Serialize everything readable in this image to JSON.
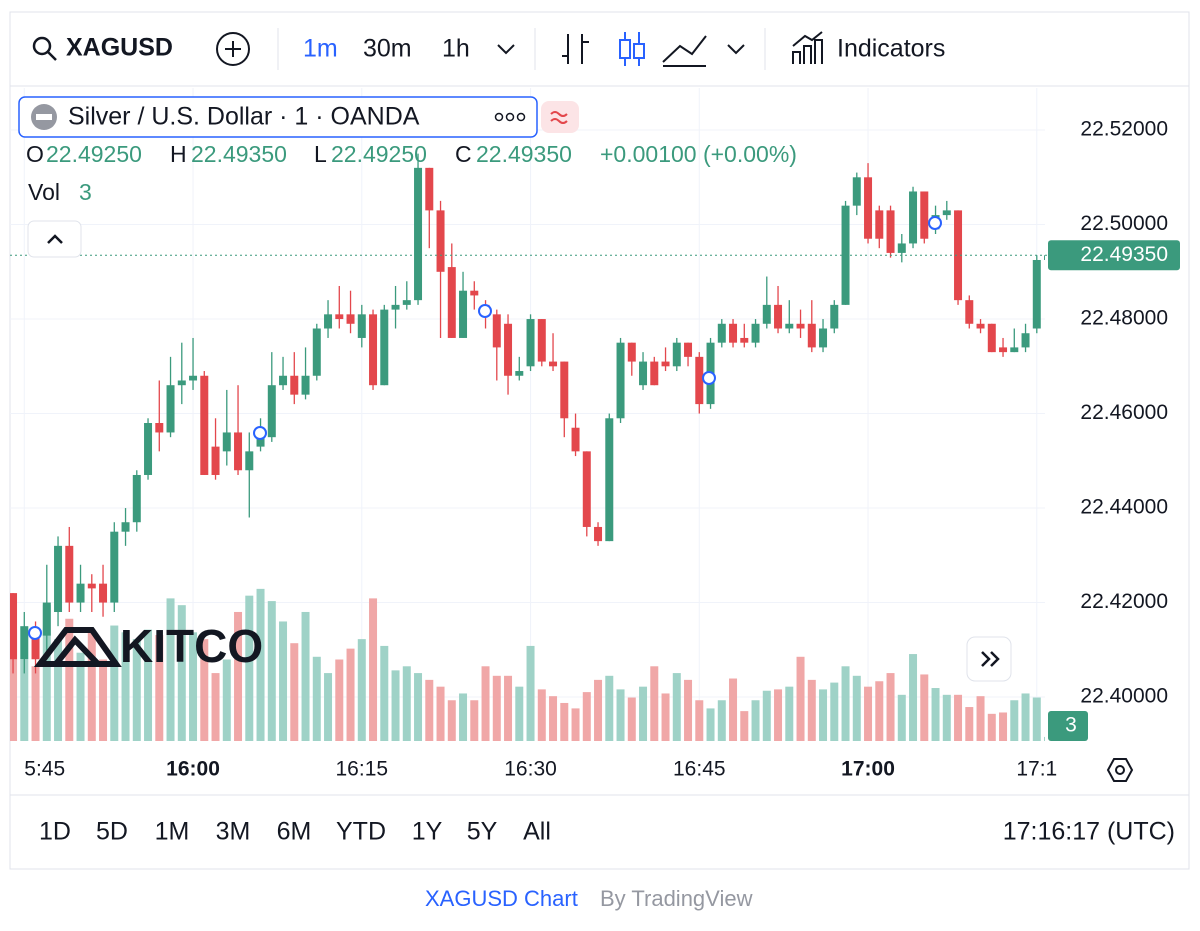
{
  "toolbar": {
    "symbol": "XAGUSD",
    "intervals": [
      "1m",
      "30m",
      "1h"
    ],
    "indicators": "Indicators"
  },
  "legend": {
    "title": "Silver / U.S. Dollar · 1 · OANDA",
    "o_label": "O",
    "o": "22.49250",
    "h_label": "H",
    "h": "22.49350",
    "l_label": "L",
    "l": "22.49250",
    "c_label": "C",
    "c": "22.49350",
    "change": "+0.00100 (+0.00%)",
    "vol_label": "Vol"
  },
  "watermark": "KITCO",
  "chart_data": {
    "type": "candlestick",
    "x": [
      -16,
      -15,
      -14,
      -13,
      -12,
      -11,
      -10,
      -9,
      -8,
      -7,
      -6,
      -5,
      -4,
      -3,
      -2,
      -1,
      0,
      1,
      2,
      3,
      4,
      5,
      6,
      7,
      8,
      9,
      10,
      11,
      12,
      13,
      14,
      15,
      16,
      17,
      18,
      19,
      20,
      21,
      22,
      23,
      24,
      25,
      26,
      27,
      28,
      29,
      30,
      31,
      32,
      33,
      34,
      35,
      36,
      37,
      38,
      39,
      40,
      41,
      42,
      43,
      44,
      45,
      46,
      47,
      48,
      49,
      50,
      51,
      52,
      53,
      54,
      55,
      56,
      57,
      58,
      59,
      60,
      61,
      62,
      63,
      64,
      65,
      66,
      67,
      68,
      69,
      70,
      71,
      72,
      73,
      74,
      75,
      76
    ],
    "open": [
      22.422,
      22.408,
      22.414,
      22.413,
      22.418,
      22.432,
      22.42,
      22.424,
      22.424,
      22.42,
      22.435,
      22.437,
      22.447,
      22.458,
      22.456,
      22.466,
      22.467,
      22.468,
      22.453,
      22.452,
      22.456,
      22.448,
      22.453,
      22.455,
      22.466,
      22.468,
      22.464,
      22.468,
      22.478,
      22.481,
      22.481,
      22.476,
      22.481,
      22.466,
      22.482,
      22.483,
      22.484,
      22.512,
      22.503,
      22.491,
      22.476,
      22.486,
      22.483,
      22.481,
      22.479,
      22.468,
      22.47,
      22.48,
      22.471,
      22.471,
      22.457,
      22.452,
      22.436,
      22.433,
      22.459,
      22.475,
      22.466,
      22.471,
      22.471,
      22.47,
      22.475,
      22.472,
      22.462,
      22.475,
      22.479,
      22.476,
      22.475,
      22.479,
      22.483,
      22.478,
      22.479,
      22.479,
      22.474,
      22.478,
      22.483,
      22.504,
      22.51,
      22.503,
      22.503,
      22.494,
      22.496,
      22.507,
      22.499,
      22.502,
      22.503,
      22.484,
      22.479,
      22.479,
      22.474,
      22.473,
      22.474,
      22.478,
      22.4925
    ],
    "high": [
      22.422,
      22.418,
      22.416,
      22.428,
      22.434,
      22.436,
      22.428,
      22.426,
      22.428,
      22.437,
      22.44,
      22.448,
      22.459,
      22.467,
      22.472,
      22.475,
      22.476,
      22.469,
      22.459,
      22.465,
      22.466,
      22.456,
      22.459,
      22.473,
      22.472,
      22.473,
      22.474,
      22.479,
      22.484,
      22.487,
      22.486,
      22.483,
      22.482,
      22.483,
      22.487,
      22.488,
      22.515,
      22.512,
      22.505,
      22.496,
      22.49,
      22.488,
      22.484,
      22.482,
      22.481,
      22.472,
      22.481,
      22.48,
      22.477,
      22.471,
      22.46,
      22.452,
      22.437,
      22.46,
      22.476,
      22.475,
      22.473,
      22.472,
      22.474,
      22.476,
      22.475,
      22.473,
      22.476,
      22.48,
      22.48,
      22.479,
      22.48,
      22.489,
      22.487,
      22.484,
      22.482,
      22.484,
      22.48,
      22.484,
      22.505,
      22.511,
      22.513,
      22.504,
      22.504,
      22.498,
      22.508,
      22.507,
      22.504,
      22.505,
      22.503,
      22.485,
      22.48,
      22.479,
      22.476,
      22.478,
      22.479,
      22.4935,
      22.4935
    ],
    "low": [
      22.405,
      22.405,
      22.405,
      22.408,
      22.415,
      22.418,
      22.418,
      22.418,
      22.417,
      22.418,
      22.432,
      22.435,
      22.446,
      22.452,
      22.455,
      22.462,
      22.465,
      22.447,
      22.446,
      22.449,
      22.447,
      22.438,
      22.452,
      22.454,
      22.465,
      22.462,
      22.463,
      22.467,
      22.476,
      22.478,
      22.477,
      22.474,
      22.465,
      22.466,
      22.478,
      22.482,
      22.483,
      22.495,
      22.476,
      22.476,
      22.476,
      22.482,
      22.478,
      22.467,
      22.464,
      22.467,
      22.469,
      22.47,
      22.469,
      22.455,
      22.451,
      22.434,
      22.432,
      22.433,
      22.458,
      22.468,
      22.465,
      22.466,
      22.469,
      22.469,
      22.47,
      22.46,
      22.461,
      22.474,
      22.474,
      22.474,
      22.474,
      22.478,
      22.477,
      22.477,
      22.476,
      22.473,
      22.473,
      22.477,
      22.483,
      22.502,
      22.496,
      22.495,
      22.493,
      22.492,
      22.495,
      22.496,
      22.498,
      22.501,
      22.483,
      22.478,
      22.477,
      22.473,
      22.472,
      22.473,
      22.473,
      22.477,
      22.4925
    ],
    "close": [
      22.408,
      22.415,
      22.408,
      22.42,
      22.432,
      22.42,
      22.424,
      22.423,
      22.42,
      22.435,
      22.437,
      22.447,
      22.458,
      22.456,
      22.466,
      22.467,
      22.468,
      22.447,
      22.447,
      22.456,
      22.448,
      22.452,
      22.455,
      22.466,
      22.468,
      22.464,
      22.468,
      22.478,
      22.481,
      22.48,
      22.479,
      22.481,
      22.466,
      22.482,
      22.483,
      22.484,
      22.512,
      22.503,
      22.49,
      22.476,
      22.486,
      22.485,
      22.481,
      22.474,
      22.468,
      22.469,
      22.48,
      22.471,
      22.47,
      22.459,
      22.452,
      22.436,
      22.433,
      22.459,
      22.475,
      22.471,
      22.471,
      22.466,
      22.47,
      22.475,
      22.472,
      22.462,
      22.475,
      22.479,
      22.475,
      22.475,
      22.479,
      22.483,
      22.478,
      22.479,
      22.478,
      22.474,
      22.478,
      22.483,
      22.504,
      22.51,
      22.497,
      22.497,
      22.494,
      22.496,
      22.507,
      22.497,
      22.502,
      22.503,
      22.484,
      22.479,
      22.478,
      22.473,
      22.473,
      22.474,
      22.477,
      22.4925,
      22.4935
    ],
    "volume": [
      82,
      60,
      55,
      100,
      75,
      90,
      65,
      80,
      60,
      85,
      80,
      75,
      82,
      78,
      105,
      100,
      80,
      75,
      50,
      60,
      95,
      107,
      112,
      103,
      88,
      72,
      95,
      62,
      50,
      60,
      68,
      75,
      105,
      70,
      52,
      55,
      50,
      45,
      40,
      30,
      35,
      30,
      55,
      48,
      48,
      40,
      70,
      38,
      33,
      28,
      24,
      36,
      45,
      48,
      38,
      32,
      40,
      55,
      35,
      50,
      45,
      30,
      24,
      30,
      46,
      22,
      30,
      37,
      38,
      40,
      62,
      45,
      38,
      43,
      55,
      48,
      40,
      44,
      50,
      34,
      64,
      49,
      39,
      34,
      34,
      25,
      33,
      20,
      21,
      30,
      35,
      32,
      3
    ],
    "up_color": "#3b9a7d",
    "down_color": "#e3474c",
    "up_volume_color": "#9fd2c7",
    "down_volume_color": "#f0a7a7",
    "xlim": [
      -16.27,
      75.73
    ],
    "xticks": [
      {
        "value": -15,
        "label": "5:45"
      },
      {
        "value": 0,
        "label": "16:00"
      },
      {
        "value": 15,
        "label": "16:15"
      },
      {
        "value": 30,
        "label": "16:30"
      },
      {
        "value": 45,
        "label": "16:45"
      },
      {
        "value": 60,
        "label": "17:00"
      },
      {
        "value": 75,
        "label": "17:1"
      }
    ],
    "ylim": [
      22.3907,
      22.5289
    ],
    "yticks": [
      {
        "value": 22.4,
        "label": "22.40000"
      },
      {
        "value": 22.42,
        "label": "22.42000"
      },
      {
        "value": 22.44,
        "label": "22.44000"
      },
      {
        "value": 22.46,
        "label": "22.46000"
      },
      {
        "value": 22.48,
        "label": "22.48000"
      },
      {
        "value": 22.5,
        "label": "22.50000"
      },
      {
        "value": 22.52,
        "label": "22.52000"
      }
    ],
    "y2lim": [
      0,
      120
    ],
    "last": {
      "value": 22.4935,
      "label": "22.49350"
    },
    "grid": true
  },
  "range_bar": {
    "ranges": [
      "1D",
      "5D",
      "1M",
      "3M",
      "6M",
      "YTD",
      "1Y",
      "5Y",
      "All"
    ],
    "clock": "17:16:17 (UTC)"
  },
  "footer": {
    "link": "XAGUSD Chart",
    "by": "By TradingView"
  }
}
